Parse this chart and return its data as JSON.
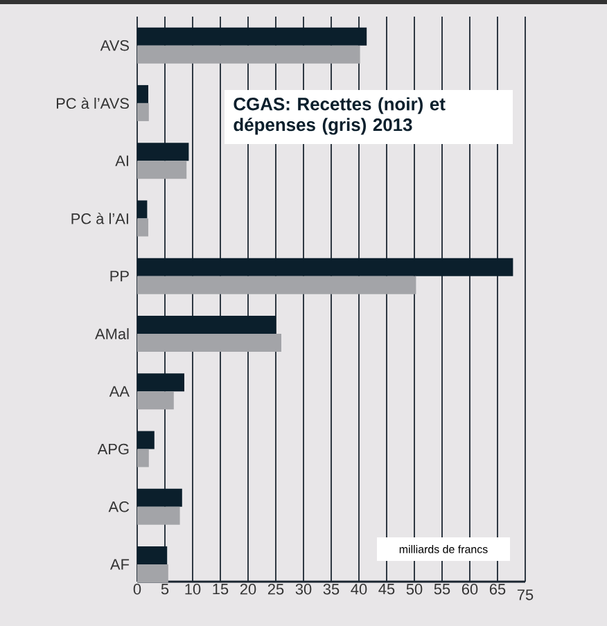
{
  "chart_data": {
    "type": "bar",
    "orientation": "horizontal",
    "title": "CGAS: Recettes (noir) et dépenses (gris) 2013",
    "categories": [
      "AVS",
      "PC à l’AVS",
      "AI",
      "PC à l’AI",
      "PP",
      "AMal",
      "AA",
      "APG",
      "AC",
      "AF"
    ],
    "series": [
      {
        "color": "#0b1f2c",
        "values": [
          41.4,
          2.0,
          9.3,
          1.8,
          67.8,
          25.0,
          8.5,
          3.1,
          8.1,
          5.4
        ]
      },
      {
        "color": "#a3a4a8",
        "values": [
          40.2,
          2.1,
          8.9,
          2.0,
          50.3,
          26.0,
          6.6,
          2.1,
          7.7,
          5.6
        ]
      }
    ],
    "xlim": [
      0,
      70
    ],
    "xticks": [
      0,
      5,
      10,
      15,
      20,
      25,
      30,
      35,
      40,
      45,
      50,
      55,
      60,
      65,
      {
        "value": 70,
        "label": null
      }
    ],
    "grid": "x",
    "annotations": [
      "milliards de francs",
      "75"
    ]
  }
}
